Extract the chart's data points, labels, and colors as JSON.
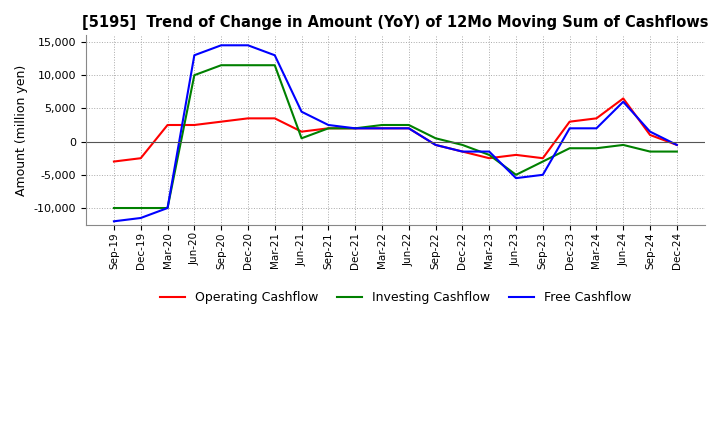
{
  "title": "[5195]  Trend of Change in Amount (YoY) of 12Mo Moving Sum of Cashflows",
  "ylabel": "Amount (million yen)",
  "ylim": [
    -12500,
    16000
  ],
  "yticks": [
    -10000,
    -5000,
    0,
    5000,
    10000,
    15000
  ],
  "x_labels": [
    "Sep-19",
    "Dec-19",
    "Mar-20",
    "Jun-20",
    "Sep-20",
    "Dec-20",
    "Mar-21",
    "Jun-21",
    "Sep-21",
    "Dec-21",
    "Mar-22",
    "Jun-22",
    "Sep-22",
    "Dec-22",
    "Mar-23",
    "Jun-23",
    "Sep-23",
    "Dec-23",
    "Mar-24",
    "Jun-24",
    "Sep-24",
    "Dec-24"
  ],
  "operating": [
    -3000,
    -2500,
    2500,
    2500,
    3000,
    3500,
    3500,
    1500,
    2000,
    2000,
    2000,
    2000,
    -500,
    -1500,
    -2500,
    -2000,
    -2500,
    3000,
    3500,
    6500,
    1000,
    -500
  ],
  "investing": [
    -10000,
    -10000,
    -10000,
    10000,
    11500,
    11500,
    11500,
    500,
    2000,
    2000,
    2500,
    2500,
    500,
    -500,
    -2000,
    -5000,
    -3000,
    -1000,
    -1000,
    -500,
    -1500,
    -1500
  ],
  "free": [
    -12000,
    -11500,
    -10000,
    13000,
    14500,
    14500,
    13000,
    4500,
    2500,
    2000,
    2000,
    2000,
    -500,
    -1500,
    -1500,
    -5500,
    -5000,
    2000,
    2000,
    6000,
    1500,
    -500
  ],
  "op_color": "#ff0000",
  "inv_color": "#008000",
  "free_color": "#0000ff",
  "background": "#ffffff",
  "grid_color": "#aaaaaa"
}
